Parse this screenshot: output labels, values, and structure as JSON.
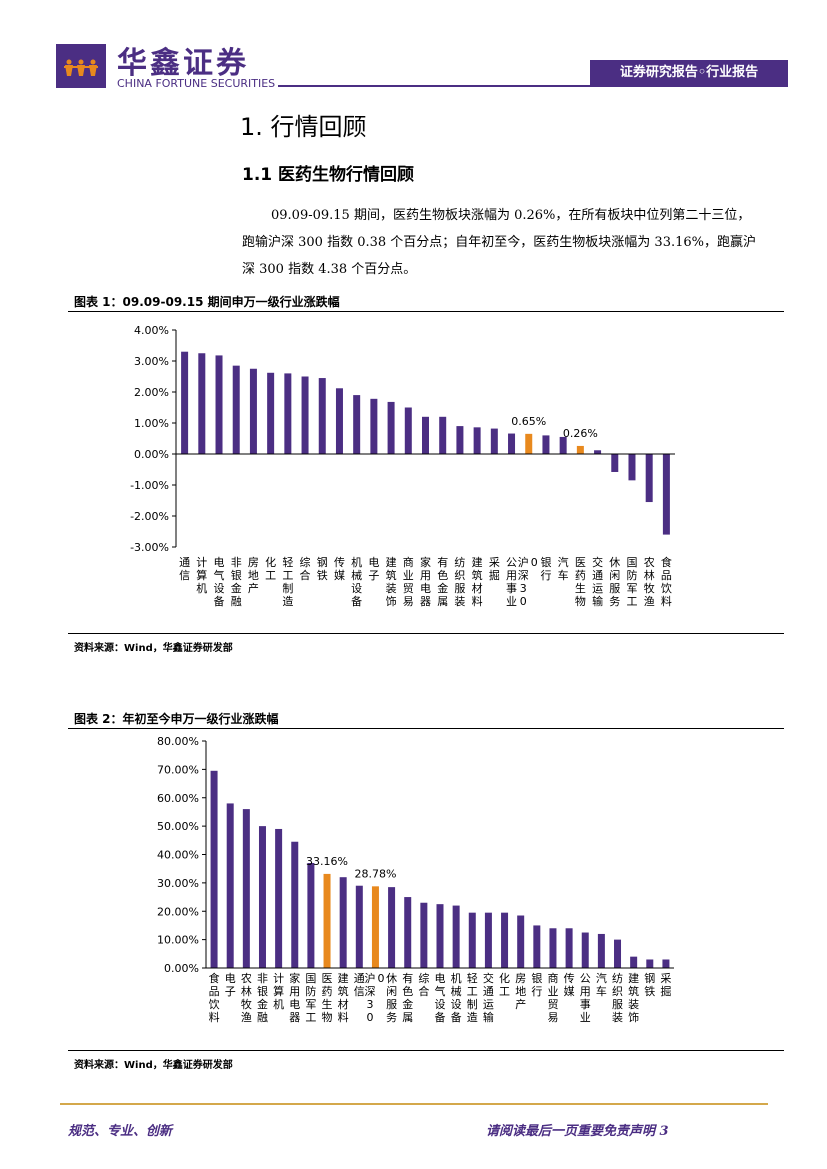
{
  "header": {
    "brand_cn": "华鑫证券",
    "brand_en": "CHINA FORTUNE SECURITIES",
    "report_tag": "证券研究报告◦行业报告"
  },
  "section": {
    "h1": "1. 行情回顾",
    "h2": "1.1 医药生物行情回顾",
    "para": [
      "09.09-09.15 期间，医药生物板块涨幅为 0.26%，在所有板块中位列第二十三位，",
      "跑输沪深 300 指数 0.38 个百分点；自年初至今，医药生物板块涨幅为 33.16%，跑赢沪",
      "深 300 指数 4.38 个百分点。"
    ]
  },
  "figure1": {
    "title": "图表 1：09.09-09.15 期间申万一级行业涨跌幅",
    "source": "资料来源：Wind，华鑫证券研发部"
  },
  "figure2": {
    "title": "图表 2：年初至今申万一级行业涨跌幅",
    "source": "资料来源：Wind，华鑫证券研发部"
  },
  "footer": {
    "left": "规范、专业、创新",
    "right": "请阅读最后一页重要免责声明 3"
  },
  "colors": {
    "brand": "#4b2e83",
    "bar": "#4b2e83",
    "highlight": "#e8891e",
    "footer_rule": "#d4a84b"
  },
  "chart_data": [
    {
      "type": "bar",
      "ylim": [
        -3,
        4
      ],
      "y_ticks": [
        "4.00%",
        "3.00%",
        "2.00%",
        "1.00%",
        "0.00%",
        "-1.00%",
        "-2.00%",
        "-3.00%"
      ],
      "categories": [
        "通信",
        "计算机",
        "电气设备",
        "非银金融",
        "房地产",
        "化工",
        "轻工制造",
        "综合",
        "钢铁",
        "传媒",
        "机械设备",
        "电子",
        "建筑装饰",
        "商业贸易",
        "家用电器",
        "有色金属",
        "纺织服装",
        "建筑材料",
        "采掘",
        "公用事业",
        "沪深300",
        "银行",
        "汽车",
        "医药生物",
        "交通运输",
        "休闲服务",
        "国防军工",
        "农林牧渔",
        "食品饮料"
      ],
      "values": [
        3.3,
        3.25,
        3.18,
        2.85,
        2.75,
        2.62,
        2.6,
        2.5,
        2.45,
        2.12,
        1.9,
        1.78,
        1.68,
        1.5,
        1.2,
        1.2,
        0.9,
        0.86,
        0.82,
        0.66,
        0.65,
        0.6,
        0.55,
        0.26,
        0.12,
        -0.58,
        -0.85,
        -1.55,
        -2.6
      ],
      "highlight": [
        "沪深300",
        "医药生物"
      ],
      "data_labels": [
        {
          "category": "沪深300",
          "text": "0.65%"
        },
        {
          "category": "医药生物",
          "text": "0.26%"
        }
      ]
    },
    {
      "type": "bar",
      "ylim": [
        0,
        80
      ],
      "y_ticks": [
        "80.00%",
        "70.00%",
        "60.00%",
        "50.00%",
        "40.00%",
        "30.00%",
        "20.00%",
        "10.00%",
        "0.00%"
      ],
      "categories": [
        "食品饮料",
        "电子",
        "农林牧渔",
        "非银金融",
        "计算机",
        "家用电器",
        "国防军工",
        "医药生物",
        "建筑材料",
        "通信",
        "沪深300",
        "休闲服务",
        "有色金属",
        "综合",
        "电气设备",
        "机械设备",
        "轻工制造",
        "交通运输",
        "化工",
        "房地产",
        "银行",
        "商业贸易",
        "传媒",
        "公用事业",
        "汽车",
        "纺织服装",
        "建筑装饰",
        "钢铁",
        "采掘"
      ],
      "values": [
        69.5,
        58,
        56,
        50,
        49,
        44.5,
        37,
        33.16,
        32,
        29,
        28.78,
        28.5,
        25,
        23,
        22.5,
        22,
        19.5,
        19.5,
        19.5,
        18.5,
        15,
        14,
        14,
        12.5,
        12,
        10,
        4,
        3,
        3
      ],
      "highlight": [
        "医药生物",
        "沪深300"
      ],
      "data_labels": [
        {
          "category": "医药生物",
          "text": "33.16%"
        },
        {
          "category": "沪深300",
          "text": "28.78%"
        }
      ]
    }
  ]
}
